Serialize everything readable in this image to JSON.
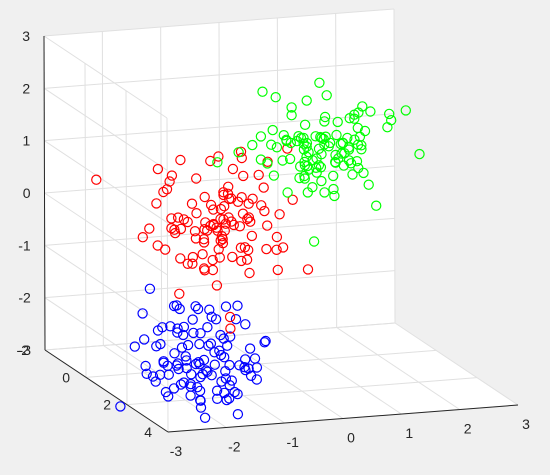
{
  "chart_data": {
    "type": "scatter",
    "title": "",
    "xlabel": "",
    "ylabel": "",
    "zlabel": "",
    "grid": true,
    "marker": "open-circle",
    "axes": {
      "x": {
        "ticks": [
          "-3",
          "-2",
          "-1",
          "0",
          "1",
          "2",
          "3"
        ],
        "lim": [
          -3,
          3
        ]
      },
      "y": {
        "ticks": [
          "-2",
          "0",
          "2",
          "4"
        ],
        "lim": [
          -2,
          4
        ]
      },
      "z": {
        "ticks": [
          "-3",
          "-2",
          "-1",
          "0",
          "1",
          "2",
          "3"
        ],
        "lim": [
          -3,
          3
        ]
      }
    },
    "series": [
      {
        "color": "#0000ff",
        "cx": -2.0,
        "cy": 2.7,
        "cz": -2.0,
        "spread": 0.55,
        "count": 110
      },
      {
        "color": "#ff0000",
        "cx": -1.0,
        "cy": 1.0,
        "cz": 0.0,
        "spread": 0.55,
        "count": 110
      },
      {
        "color": "#00ff00",
        "cx": 1.0,
        "cy": 0.0,
        "cz": 1.0,
        "spread": 0.55,
        "count": 110
      }
    ]
  }
}
